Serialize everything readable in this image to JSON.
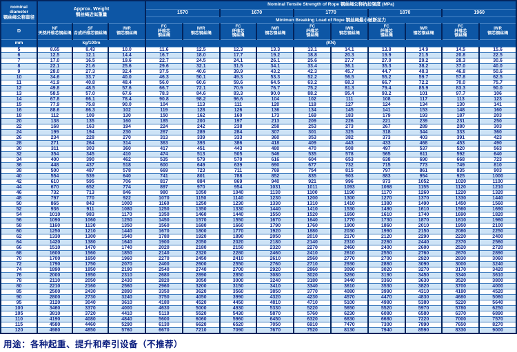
{
  "header": {
    "diameter": {
      "en1": "nominal",
      "en2": "diameter",
      "zh": "钢丝绳公称直径",
      "symbol": "D",
      "unit": "mm"
    },
    "weight": {
      "title_en": "Approx. Weight",
      "title_zh": "钢丝绳近似重量",
      "unit": "kg/100m",
      "nf_abbr": "NF",
      "nf_zh": "天然纤维芯钢丝绳",
      "sf_abbr": "SF",
      "sf_zh": "合成纤维芯钢丝绳",
      "iwr_abbr": "IWR",
      "iwr_zh": "钢芯钢丝绳"
    },
    "strength": {
      "title": "Nominal  Tensile  Strength  of  Rope  钢丝绳公称抗拉强度  (MPa)",
      "grades": [
        "1570",
        "1670",
        "1770",
        "1870",
        "1960"
      ],
      "breaking_title": "Minimun  Breaking  Load  of  Rope  钢丝绳最小破断拉力",
      "unit": "(KN)",
      "fc_abbr": "FC",
      "fc_zh1": "纤维芯",
      "fc_zh2": "钢丝绳",
      "iwr_abbr": "IWR",
      "iwr_zh": "钢芯钢丝绳"
    }
  },
  "table": {
    "rows": [
      [
        "5",
        "8.65",
        "8.43",
        "10.0",
        "11.6",
        "12.5",
        "12.3",
        "13.3",
        "13.1",
        "14.1",
        "13.8",
        "14.9",
        "14.5",
        "15.6"
      ],
      [
        "6",
        "12.5",
        "12.1",
        "14.4",
        "16.7",
        "18.0",
        "17.7",
        "19.2",
        "18.8",
        "20.3",
        "19.9",
        "21.5",
        "20.8",
        "22.5"
      ],
      [
        "7",
        "17.0",
        "16.5",
        "19.6",
        "22.7",
        "24.5",
        "24.1",
        "26.1",
        "25.6",
        "27.7",
        "27.0",
        "29.2",
        "28.3",
        "30.6"
      ],
      [
        "8",
        "22.1",
        "21.6",
        "25.6",
        "29.6",
        "32.1",
        "31.5",
        "34.1",
        "33.4",
        "36.1",
        "35.3",
        "38.2",
        "37.0",
        "40.0"
      ],
      [
        "9",
        "28.0",
        "27.3",
        "32.4",
        "37.5",
        "40.6",
        "39.9",
        "43.2",
        "42.3",
        "45.7",
        "44.7",
        "48.3",
        "46.8",
        "50.6"
      ],
      [
        "10",
        "34.6",
        "33.7",
        "40.0",
        "46.3",
        "50.1",
        "49.3",
        "53.3",
        "52.2",
        "56.5",
        "55.2",
        "59.7",
        "57.8",
        "62.5"
      ],
      [
        "11",
        "41.9",
        "40.8",
        "48.4",
        "56.0",
        "60.6",
        "59.6",
        "64.5",
        "63.2",
        "68.3",
        "66.7",
        "72.2",
        "70.0",
        "75.7"
      ],
      [
        "12",
        "49.8",
        "48.5",
        "57.6",
        "66.7",
        "72.1",
        "70.9",
        "76.7",
        "75.2",
        "81.3",
        "79.4",
        "85.9",
        "83.3",
        "90.0"
      ],
      [
        "13",
        "58.5",
        "57.0",
        "67.6",
        "78.3",
        "84.6",
        "83.3",
        "90.0",
        "88.2",
        "95.4",
        "93.2",
        "101",
        "97.7",
        "106"
      ],
      [
        "14",
        "67.8",
        "66.1",
        "78.4",
        "90.8",
        "98.2",
        "96.6",
        "104",
        "102",
        "111",
        "108",
        "117",
        "113",
        "123"
      ],
      [
        "15",
        "77.9",
        "75.8",
        "90.0",
        "104",
        "113",
        "111",
        "120",
        "118",
        "127",
        "124",
        "134",
        "130",
        "141"
      ],
      [
        "16",
        "88.6",
        "86.3",
        "102",
        "119",
        "128",
        "126",
        "136",
        "134",
        "145",
        "141",
        "153",
        "148",
        "160"
      ],
      [
        "18",
        "112",
        "109",
        "130",
        "150",
        "162",
        "160",
        "173",
        "169",
        "183",
        "179",
        "193",
        "187",
        "203"
      ],
      [
        "20",
        "138",
        "135",
        "160",
        "185",
        "200",
        "197",
        "213",
        "209",
        "226",
        "221",
        "239",
        "231",
        "250"
      ],
      [
        "22",
        "168",
        "163",
        "194",
        "224",
        "242",
        "238",
        "258",
        "253",
        "273",
        "267",
        "289",
        "280",
        "303"
      ],
      [
        "24",
        "199",
        "194",
        "230",
        "267",
        "289",
        "284",
        "307",
        "301",
        "325",
        "318",
        "344",
        "333",
        "360"
      ],
      [
        "26",
        "234",
        "228",
        "270",
        "313",
        "339",
        "333",
        "360",
        "353",
        "382",
        "373",
        "403",
        "391",
        "423"
      ],
      [
        "28",
        "271",
        "264",
        "314",
        "363",
        "393",
        "386",
        "418",
        "409",
        "443",
        "433",
        "468",
        "453",
        "490"
      ],
      [
        "30",
        "311",
        "303",
        "360",
        "417",
        "451",
        "443",
        "480",
        "470",
        "508",
        "497",
        "537",
        "520",
        "563"
      ],
      [
        "32",
        "354",
        "345",
        "410",
        "474",
        "513",
        "505",
        "546",
        "535",
        "578",
        "565",
        "611",
        "592",
        "640"
      ],
      [
        "34",
        "400",
        "390",
        "462",
        "535",
        "579",
        "570",
        "616",
        "604",
        "653",
        "638",
        "690",
        "668",
        "723"
      ],
      [
        "36",
        "448",
        "437",
        "518",
        "600",
        "649",
        "639",
        "690",
        "677",
        "732",
        "715",
        "773",
        "749",
        "810"
      ],
      [
        "38",
        "500",
        "487",
        "578",
        "669",
        "723",
        "711",
        "769",
        "754",
        "815",
        "797",
        "861",
        "835",
        "903"
      ],
      [
        "40",
        "554",
        "539",
        "640",
        "741",
        "801",
        "788",
        "852",
        "835",
        "903",
        "883",
        "954",
        "925",
        "1000"
      ],
      [
        "42",
        "610",
        "595",
        "706",
        "817",
        "884",
        "869",
        "940",
        "921",
        "996",
        "973",
        "1052",
        "1020",
        "1100"
      ],
      [
        "44",
        "670",
        "652",
        "774",
        "897",
        "970",
        "954",
        "1031",
        "1011",
        "1093",
        "1068",
        "1155",
        "1120",
        "1210"
      ],
      [
        "46",
        "732",
        "713",
        "846",
        "980",
        "1050",
        "1040",
        "1130",
        "1100",
        "1190",
        "1170",
        "1260",
        "1220",
        "1320"
      ],
      [
        "48",
        "797",
        "770",
        "922",
        "1070",
        "1150",
        "1140",
        "1230",
        "1200",
        "1300",
        "1270",
        "1370",
        "1330",
        "1440"
      ],
      [
        "50",
        "865",
        "843",
        "1000",
        "1160",
        "1250",
        "1230",
        "1330",
        "1310",
        "1410",
        "1380",
        "1490",
        "1450",
        "1560"
      ],
      [
        "52",
        "936",
        "911",
        "1080",
        "1250",
        "1350",
        "1330",
        "1440",
        "1410",
        "1530",
        "1490",
        "1610",
        "1560",
        "1690"
      ],
      [
        "54",
        "1010",
        "983",
        "1170",
        "1350",
        "1460",
        "1440",
        "1550",
        "1520",
        "1650",
        "1610",
        "1740",
        "1690",
        "1820"
      ],
      [
        "56",
        "1090",
        "1060",
        "1250",
        "1450",
        "1570",
        "1550",
        "1670",
        "1640",
        "1770",
        "1730",
        "1870",
        "1810",
        "1960"
      ],
      [
        "58",
        "1160",
        "1130",
        "1350",
        "1560",
        "1680",
        "1660",
        "1790",
        "1760",
        "1900",
        "1860",
        "2010",
        "1950",
        "2100"
      ],
      [
        "60",
        "1250",
        "1210",
        "1440",
        "1670",
        "1800",
        "1770",
        "1920",
        "1880",
        "2030",
        "1990",
        "2150",
        "2080",
        "2250"
      ],
      [
        "62",
        "1330",
        "1300",
        "1540",
        "1780",
        "1920",
        "1890",
        "2050",
        "2010",
        "2170",
        "2120",
        "2290",
        "2220",
        "2400"
      ],
      [
        "64",
        "1420",
        "1380",
        "1640",
        "1900",
        "2050",
        "2020",
        "2180",
        "2140",
        "2310",
        "2260",
        "2440",
        "2370",
        "2560"
      ],
      [
        "66",
        "1510",
        "1470",
        "1740",
        "2020",
        "2180",
        "2150",
        "2320",
        "2270",
        "2460",
        "2400",
        "2600",
        "2520",
        "2720"
      ],
      [
        "68",
        "1600",
        "1560",
        "1850",
        "2140",
        "2320",
        "2280",
        "2460",
        "2410",
        "2610",
        "2550",
        "2760",
        "2670",
        "2890"
      ],
      [
        "70",
        "1700",
        "1650",
        "1960",
        "2270",
        "2450",
        "2410",
        "2610",
        "2560",
        "2770",
        "2700",
        "2920",
        "2830",
        "3060"
      ],
      [
        "72",
        "1790",
        "1750",
        "2070",
        "2400",
        "2600",
        "2550",
        "2760",
        "2710",
        "2930",
        "2860",
        "3090",
        "3000",
        "3240"
      ],
      [
        "74",
        "1890",
        "1850",
        "2190",
        "2540",
        "2740",
        "2700",
        "2920",
        "2860",
        "3090",
        "3020",
        "3270",
        "3170",
        "3420"
      ],
      [
        "76",
        "2000",
        "1950",
        "2310",
        "2680",
        "2890",
        "2850",
        "3080",
        "3020",
        "3260",
        "3190",
        "3450",
        "3340",
        "3610"
      ],
      [
        "78",
        "2110",
        "2050",
        "2430",
        "2820",
        "3050",
        "3000",
        "3240",
        "3180",
        "3440",
        "3360",
        "3630",
        "3520",
        "3800"
      ],
      [
        "80",
        "2210",
        "2160",
        "2560",
        "2960",
        "3200",
        "3150",
        "3410",
        "3340",
        "3610",
        "3530",
        "3820",
        "3700",
        "4000"
      ],
      [
        "85",
        "2500",
        "2430",
        "2890",
        "3350",
        "3620",
        "3560",
        "3850",
        "3770",
        "4080",
        "3990",
        "4310",
        "4180",
        "4520"
      ],
      [
        "90",
        "2800",
        "2730",
        "3240",
        "3750",
        "4050",
        "3990",
        "4320",
        "4230",
        "4570",
        "4470",
        "4830",
        "4680",
        "5060"
      ],
      [
        "95",
        "3120",
        "3040",
        "3610",
        "4180",
        "4520",
        "4450",
        "4810",
        "4710",
        "5100",
        "4980",
        "5380",
        "5220",
        "5640"
      ],
      [
        "100",
        "3460",
        "3370",
        "4000",
        "4630",
        "5000",
        "4930",
        "5330",
        "5220",
        "5650",
        "5520",
        "5970",
        "5780",
        "6250"
      ],
      [
        "105",
        "3810",
        "3720",
        "4410",
        "5110",
        "5520",
        "5430",
        "5870",
        "5760",
        "6230",
        "6080",
        "6580",
        "6370",
        "6890"
      ],
      [
        "110",
        "4190",
        "4080",
        "4840",
        "5600",
        "6060",
        "5960",
        "6450",
        "6320",
        "6830",
        "6680",
        "7220",
        "7000",
        "7570"
      ],
      [
        "115",
        "4580",
        "4460",
        "5290",
        "6130",
        "6620",
        "6520",
        "7050",
        "6910",
        "7470",
        "7300",
        "7890",
        "7650",
        "8270"
      ],
      [
        "120",
        "4980",
        "4850",
        "5760",
        "6670",
        "7210",
        "7090",
        "7670",
        "7520",
        "8130",
        "7940",
        "8590",
        "8330",
        "9000"
      ]
    ]
  },
  "footer": {
    "usage": "用途：各种起重、提升和牵引设备（不推荐）"
  },
  "colors": {
    "header_bg": "#0d56a5",
    "grid_dark": "#03245c",
    "row_alt": "#cde3f6",
    "data_text": "#162b8e"
  }
}
